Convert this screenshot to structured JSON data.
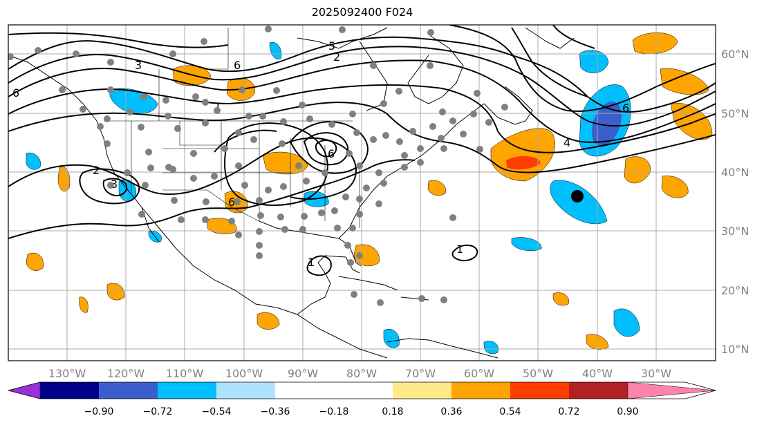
{
  "title": "2025092400 F024",
  "lon_labels": [
    "130°W",
    "120°W",
    "110°W",
    "100°W",
    "90°W",
    "80°W",
    "70°W",
    "60°W",
    "50°W",
    "40°W",
    "30°W"
  ],
  "lat_labels": [
    "60°N",
    "50°N",
    "40°N",
    "30°N",
    "20°N",
    "10°N"
  ],
  "colorbar": {
    "ticks": [
      "−0.90",
      "−0.72",
      "−0.54",
      "−0.36",
      "−0.18",
      "0.18",
      "0.36",
      "0.54",
      "0.72",
      "0.90"
    ],
    "colors": [
      "#9b30d9",
      "#00008b",
      "#3a5fcd",
      "#00bfff",
      "#aee3ff",
      "#ffffff",
      "#ffe98a",
      "#ffa500",
      "#ff3d00",
      "#b22222",
      "#ff82ab"
    ]
  },
  "contour_labels": [
    "6",
    "5",
    "2",
    "3",
    "6",
    "1",
    "6",
    "2",
    "3",
    "6",
    "4",
    "6",
    "1",
    "1"
  ],
  "colors": {
    "land_line": "#000000",
    "grid": "#a9a9a9",
    "station_dot": "#808080",
    "center_marker": "#000000"
  }
}
